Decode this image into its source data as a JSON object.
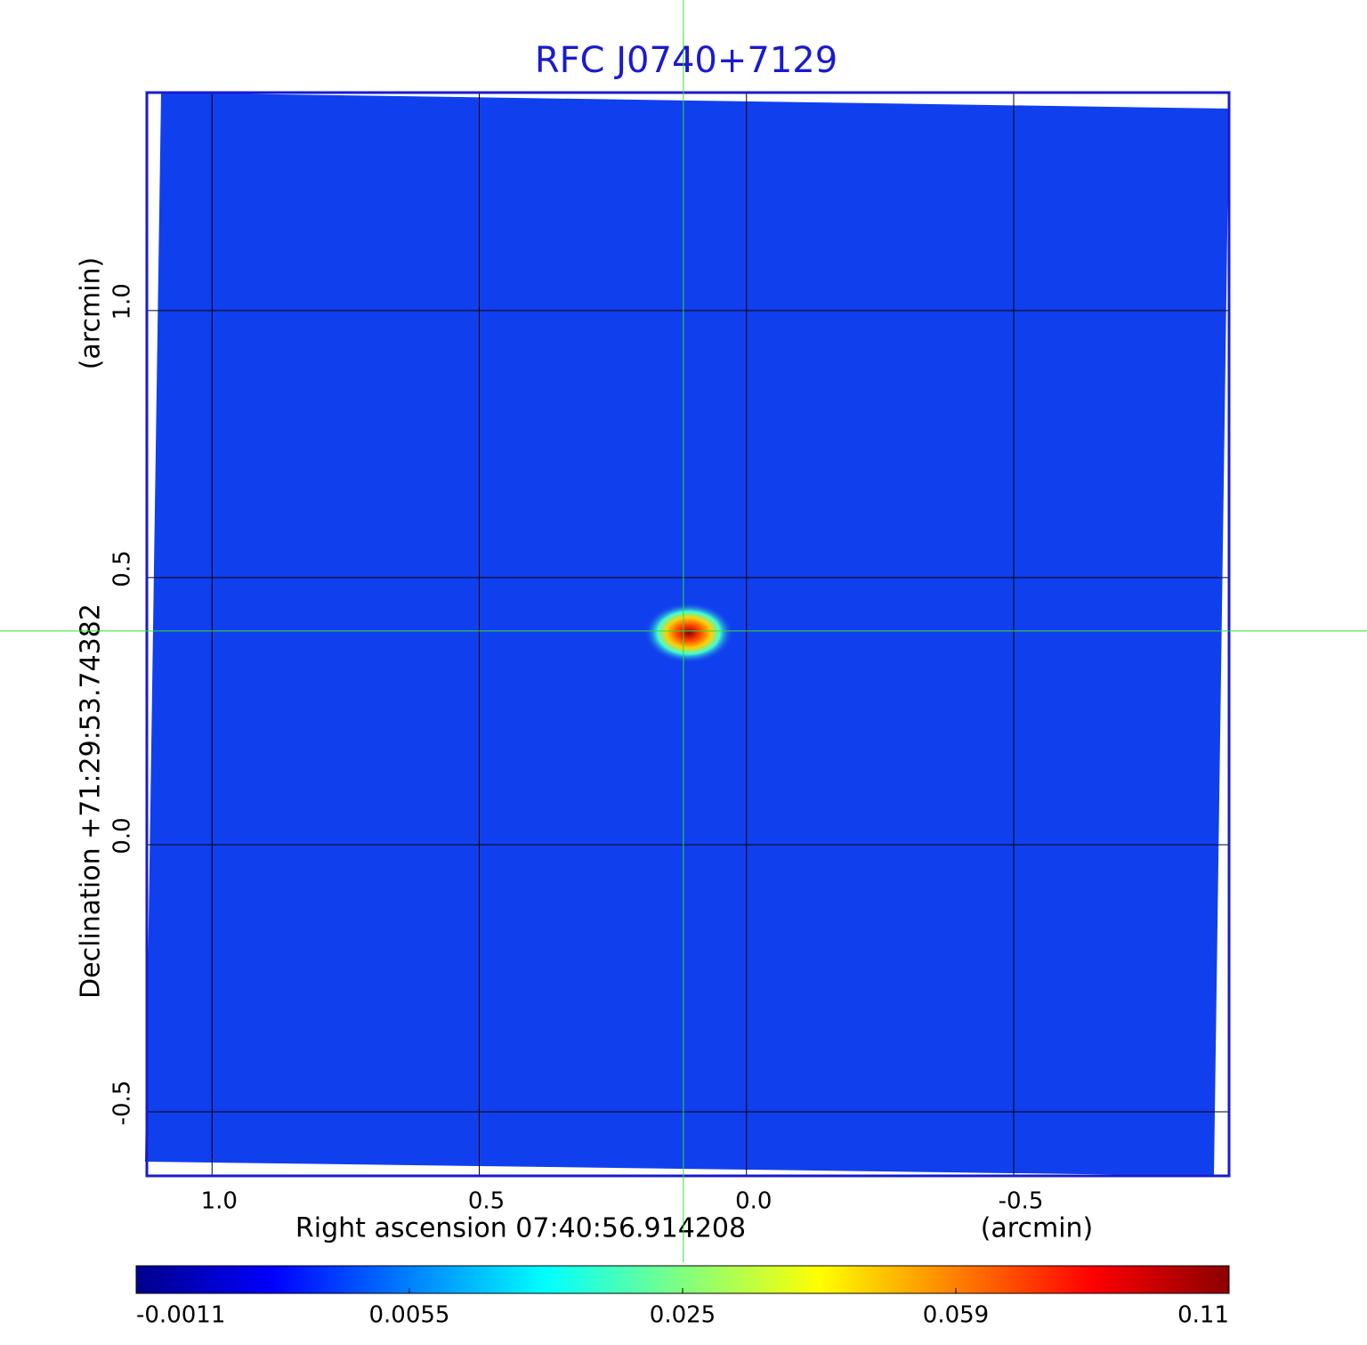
{
  "chart_data": {
    "type": "image",
    "title": "RFC J0740+7129",
    "x_label": "Right ascension  07:40:56.914208",
    "x_unit": "(arcmin)",
    "y_label": "Declination  +71:29:53.74382",
    "y_unit": "(arcmin)",
    "xlim": [
      1.122,
      -0.903
    ],
    "ylim": [
      -0.62,
      1.408
    ],
    "xticks": [
      {
        "value": 1,
        "label": "1.0"
      },
      0.5,
      {
        "value": 0,
        "label": "0.0"
      },
      -0.5
    ],
    "yticks": [
      {
        "value": 1,
        "label": "1.0"
      },
      0.5,
      {
        "value": 0,
        "label": "0.0"
      },
      -0.5
    ],
    "grid": true,
    "crosshair": {
      "x": 0.118,
      "y": 0.4,
      "color": "#33dd33"
    },
    "colorbar_ticks": [
      -0.0011,
      0.0055,
      0.025,
      0.059,
      0.11
    ],
    "colormap": [
      "#00008b",
      "#0000ff",
      "#0080ff",
      "#00ffff",
      "#80ff80",
      "#ffff00",
      "#ff8000",
      "#ff0000",
      "#8b0000"
    ],
    "title_color": "#1a1ad0",
    "frame_color": "#1a1ad0"
  }
}
